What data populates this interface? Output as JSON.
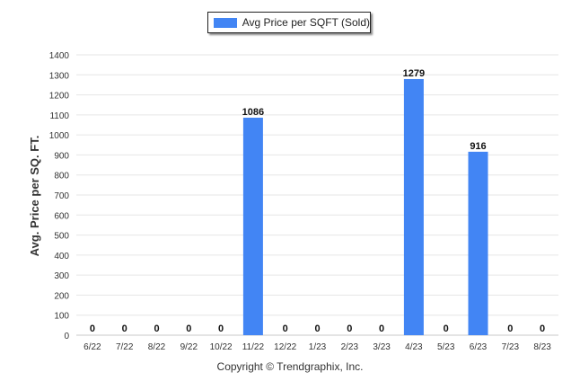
{
  "chart_data": {
    "type": "bar",
    "categories": [
      "6/22",
      "7/22",
      "8/22",
      "9/22",
      "10/22",
      "11/22",
      "12/22",
      "1/23",
      "2/23",
      "3/23",
      "4/23",
      "5/23",
      "6/23",
      "7/23",
      "8/23"
    ],
    "series": [
      {
        "name": "Avg Price per SQFT (Sold)",
        "values": [
          0,
          0,
          0,
          0,
          0,
          1086,
          0,
          0,
          0,
          0,
          1279,
          0,
          916,
          0,
          0
        ],
        "color": "#4285F4"
      }
    ],
    "ylabel": "Avg. Price per SQ. FT.",
    "xlabel": "",
    "ylim": [
      0,
      1400
    ],
    "yticks": [
      0,
      100,
      200,
      300,
      400,
      500,
      600,
      700,
      800,
      900,
      1000,
      1100,
      1200,
      1300,
      1400
    ],
    "grid": true,
    "legend": "top-center"
  },
  "footer": {
    "copyright": "Copyright © Trendgraphix, Inc."
  }
}
